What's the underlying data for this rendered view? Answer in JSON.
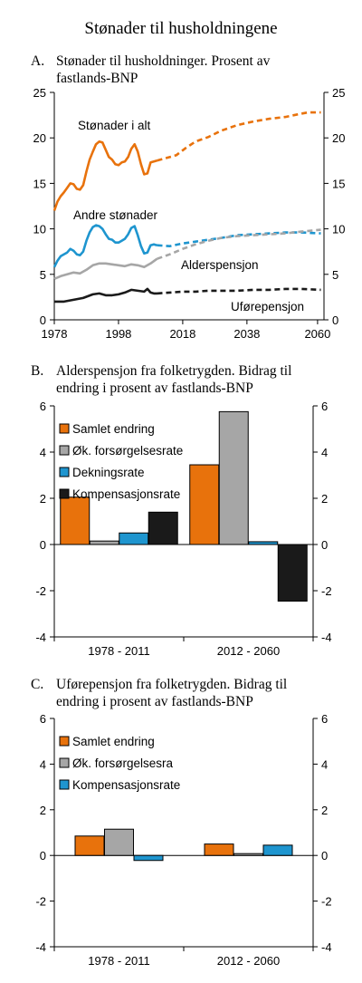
{
  "page_title": "Stønader til husholdningene",
  "colors": {
    "orange": "#E8720C",
    "blue": "#1E95CF",
    "gray": "#A6A6A6",
    "black": "#1A1A1A"
  },
  "chart_data": [
    {
      "type": "line",
      "panel": "A.",
      "title_lines": [
        "Stønader til husholdninger. Prosent av",
        "fastlands-BNP"
      ],
      "xlim": [
        1978,
        2062
      ],
      "ylim": [
        0,
        25
      ],
      "x_ticks": [
        "1978",
        "1998",
        "2018",
        "2038",
        "2060"
      ],
      "x_tick_values": [
        1978,
        1998,
        2018,
        2038,
        2060
      ],
      "y_ticks": [
        "0",
        "5",
        "10",
        "15",
        "20",
        "25"
      ],
      "y_tick_values": [
        0,
        5,
        10,
        15,
        20,
        25
      ],
      "series": [
        {
          "name": "Stønader i alt",
          "color": "orange",
          "historical": [
            [
              1978,
              12.0
            ],
            [
              1979,
              13.0
            ],
            [
              1980,
              13.6
            ],
            [
              1981,
              14.0
            ],
            [
              1982,
              14.5
            ],
            [
              1983,
              15.0
            ],
            [
              1984,
              14.9
            ],
            [
              1985,
              14.4
            ],
            [
              1986,
              14.3
            ],
            [
              1987,
              14.8
            ],
            [
              1988,
              16.3
            ],
            [
              1989,
              17.6
            ],
            [
              1990,
              18.5
            ],
            [
              1991,
              19.3
            ],
            [
              1992,
              19.6
            ],
            [
              1993,
              19.5
            ],
            [
              1994,
              18.7
            ],
            [
              1995,
              17.9
            ],
            [
              1996,
              17.6
            ],
            [
              1997,
              17.1
            ],
            [
              1998,
              17.0
            ],
            [
              1999,
              17.3
            ],
            [
              2000,
              17.4
            ],
            [
              2001,
              17.9
            ],
            [
              2002,
              18.8
            ],
            [
              2003,
              19.3
            ],
            [
              2004,
              18.5
            ],
            [
              2005,
              17.1
            ],
            [
              2006,
              16.0
            ],
            [
              2007,
              16.1
            ],
            [
              2008,
              17.3
            ],
            [
              2009,
              17.4
            ],
            [
              2010,
              17.5
            ]
          ],
          "projection": [
            [
              2010,
              17.5
            ],
            [
              2013,
              17.8
            ],
            [
              2016,
              18.1
            ],
            [
              2019,
              18.9
            ],
            [
              2022,
              19.6
            ],
            [
              2026,
              20.1
            ],
            [
              2030,
              20.8
            ],
            [
              2035,
              21.4
            ],
            [
              2040,
              21.8
            ],
            [
              2045,
              22.1
            ],
            [
              2050,
              22.3
            ],
            [
              2054,
              22.6
            ],
            [
              2057,
              22.8
            ],
            [
              2061,
              22.8
            ]
          ]
        },
        {
          "name": "Andre stønader",
          "color": "blue",
          "historical": [
            [
              1978,
              5.8
            ],
            [
              1979,
              6.5
            ],
            [
              1980,
              7.0
            ],
            [
              1981,
              7.2
            ],
            [
              1982,
              7.4
            ],
            [
              1983,
              7.8
            ],
            [
              1984,
              7.6
            ],
            [
              1985,
              7.2
            ],
            [
              1986,
              7.1
            ],
            [
              1987,
              7.5
            ],
            [
              1988,
              8.7
            ],
            [
              1989,
              9.6
            ],
            [
              1990,
              10.2
            ],
            [
              1991,
              10.4
            ],
            [
              1992,
              10.3
            ],
            [
              1993,
              10.0
            ],
            [
              1994,
              9.4
            ],
            [
              1995,
              8.9
            ],
            [
              1996,
              8.8
            ],
            [
              1997,
              8.5
            ],
            [
              1998,
              8.5
            ],
            [
              1999,
              8.7
            ],
            [
              2000,
              8.9
            ],
            [
              2001,
              9.4
            ],
            [
              2002,
              10.1
            ],
            [
              2003,
              10.3
            ],
            [
              2004,
              9.3
            ],
            [
              2005,
              8.1
            ],
            [
              2006,
              7.3
            ],
            [
              2007,
              7.4
            ],
            [
              2008,
              8.2
            ],
            [
              2009,
              8.3
            ],
            [
              2010,
              8.2
            ]
          ],
          "projection": [
            [
              2010,
              8.2
            ],
            [
              2014,
              8.1
            ],
            [
              2018,
              8.4
            ],
            [
              2022,
              8.6
            ],
            [
              2026,
              8.8
            ],
            [
              2030,
              9.0
            ],
            [
              2035,
              9.3
            ],
            [
              2040,
              9.4
            ],
            [
              2045,
              9.5
            ],
            [
              2050,
              9.6
            ],
            [
              2055,
              9.6
            ],
            [
              2061,
              9.5
            ]
          ]
        },
        {
          "name": "Alderspensjon",
          "color": "gray",
          "historical": [
            [
              1978,
              4.5
            ],
            [
              1980,
              4.8
            ],
            [
              1982,
              5.0
            ],
            [
              1984,
              5.2
            ],
            [
              1986,
              5.1
            ],
            [
              1988,
              5.5
            ],
            [
              1990,
              6.0
            ],
            [
              1992,
              6.2
            ],
            [
              1994,
              6.2
            ],
            [
              1996,
              6.1
            ],
            [
              1998,
              6.0
            ],
            [
              2000,
              5.9
            ],
            [
              2002,
              6.1
            ],
            [
              2004,
              6.0
            ],
            [
              2006,
              5.8
            ],
            [
              2008,
              6.2
            ],
            [
              2010,
              6.7
            ]
          ],
          "projection": [
            [
              2010,
              6.7
            ],
            [
              2014,
              7.2
            ],
            [
              2018,
              7.8
            ],
            [
              2022,
              8.3
            ],
            [
              2026,
              8.7
            ],
            [
              2030,
              9.0
            ],
            [
              2035,
              9.2
            ],
            [
              2040,
              9.3
            ],
            [
              2045,
              9.4
            ],
            [
              2050,
              9.5
            ],
            [
              2055,
              9.7
            ],
            [
              2061,
              9.9
            ]
          ]
        },
        {
          "name": "Uførepensjon",
          "color": "black",
          "historical": [
            [
              1978,
              2.0
            ],
            [
              1981,
              2.0
            ],
            [
              1984,
              2.2
            ],
            [
              1987,
              2.4
            ],
            [
              1990,
              2.8
            ],
            [
              1992,
              2.9
            ],
            [
              1994,
              2.7
            ],
            [
              1996,
              2.7
            ],
            [
              1998,
              2.8
            ],
            [
              2000,
              3.0
            ],
            [
              2002,
              3.3
            ],
            [
              2004,
              3.2
            ],
            [
              2006,
              3.1
            ],
            [
              2007,
              3.4
            ],
            [
              2008,
              3.0
            ],
            [
              2009,
              2.9
            ],
            [
              2010,
              2.9
            ]
          ],
          "projection": [
            [
              2010,
              2.9
            ],
            [
              2014,
              3.0
            ],
            [
              2018,
              3.1
            ],
            [
              2022,
              3.1
            ],
            [
              2026,
              3.2
            ],
            [
              2030,
              3.2
            ],
            [
              2035,
              3.2
            ],
            [
              2040,
              3.3
            ],
            [
              2045,
              3.3
            ],
            [
              2050,
              3.4
            ],
            [
              2055,
              3.4
            ],
            [
              2061,
              3.3
            ]
          ]
        }
      ]
    },
    {
      "type": "bar",
      "panel": "B.",
      "title_lines": [
        "Alderspensjon fra folketrygden. Bidrag til",
        "endring i prosent av fastlands-BNP"
      ],
      "categories": [
        "1978 - 2011",
        "2012 - 2060"
      ],
      "ylim": [
        -4,
        6
      ],
      "y_ticks": [
        "-4",
        "-2",
        "0",
        "2",
        "4",
        "6"
      ],
      "y_tick_values": [
        -4,
        -2,
        0,
        2,
        4,
        6
      ],
      "series": [
        {
          "name": "Samlet endring",
          "color": "orange",
          "values": [
            2.05,
            3.45
          ]
        },
        {
          "name": "Øk. forsørgelsesrate",
          "color": "gray",
          "values": [
            0.15,
            5.75
          ]
        },
        {
          "name": "Dekningsrate",
          "color": "blue",
          "values": [
            0.5,
            0.12
          ]
        },
        {
          "name": "Kompensasjonsrate",
          "color": "black",
          "values": [
            1.4,
            -2.45
          ]
        }
      ]
    },
    {
      "type": "bar",
      "panel": "C.",
      "title_lines": [
        "Uførepensjon fra folketrygden. Bidrag til",
        "endring i prosent av fastlands-BNP"
      ],
      "categories": [
        "1978 - 2011",
        "2012 - 2060"
      ],
      "ylim": [
        -4,
        6
      ],
      "y_ticks": [
        "-4",
        "-2",
        "0",
        "2",
        "4",
        "6"
      ],
      "y_tick_values": [
        -4,
        -2,
        0,
        2,
        4,
        6
      ],
      "series": [
        {
          "name": "Samlet endring",
          "color": "orange",
          "values": [
            0.85,
            0.5
          ]
        },
        {
          "name": "Øk. forsørgelsesra",
          "color": "gray",
          "values": [
            1.15,
            0.08
          ]
        },
        {
          "name": "Kompensasjonsrate",
          "color": "blue",
          "values": [
            -0.22,
            0.45
          ]
        }
      ]
    }
  ]
}
